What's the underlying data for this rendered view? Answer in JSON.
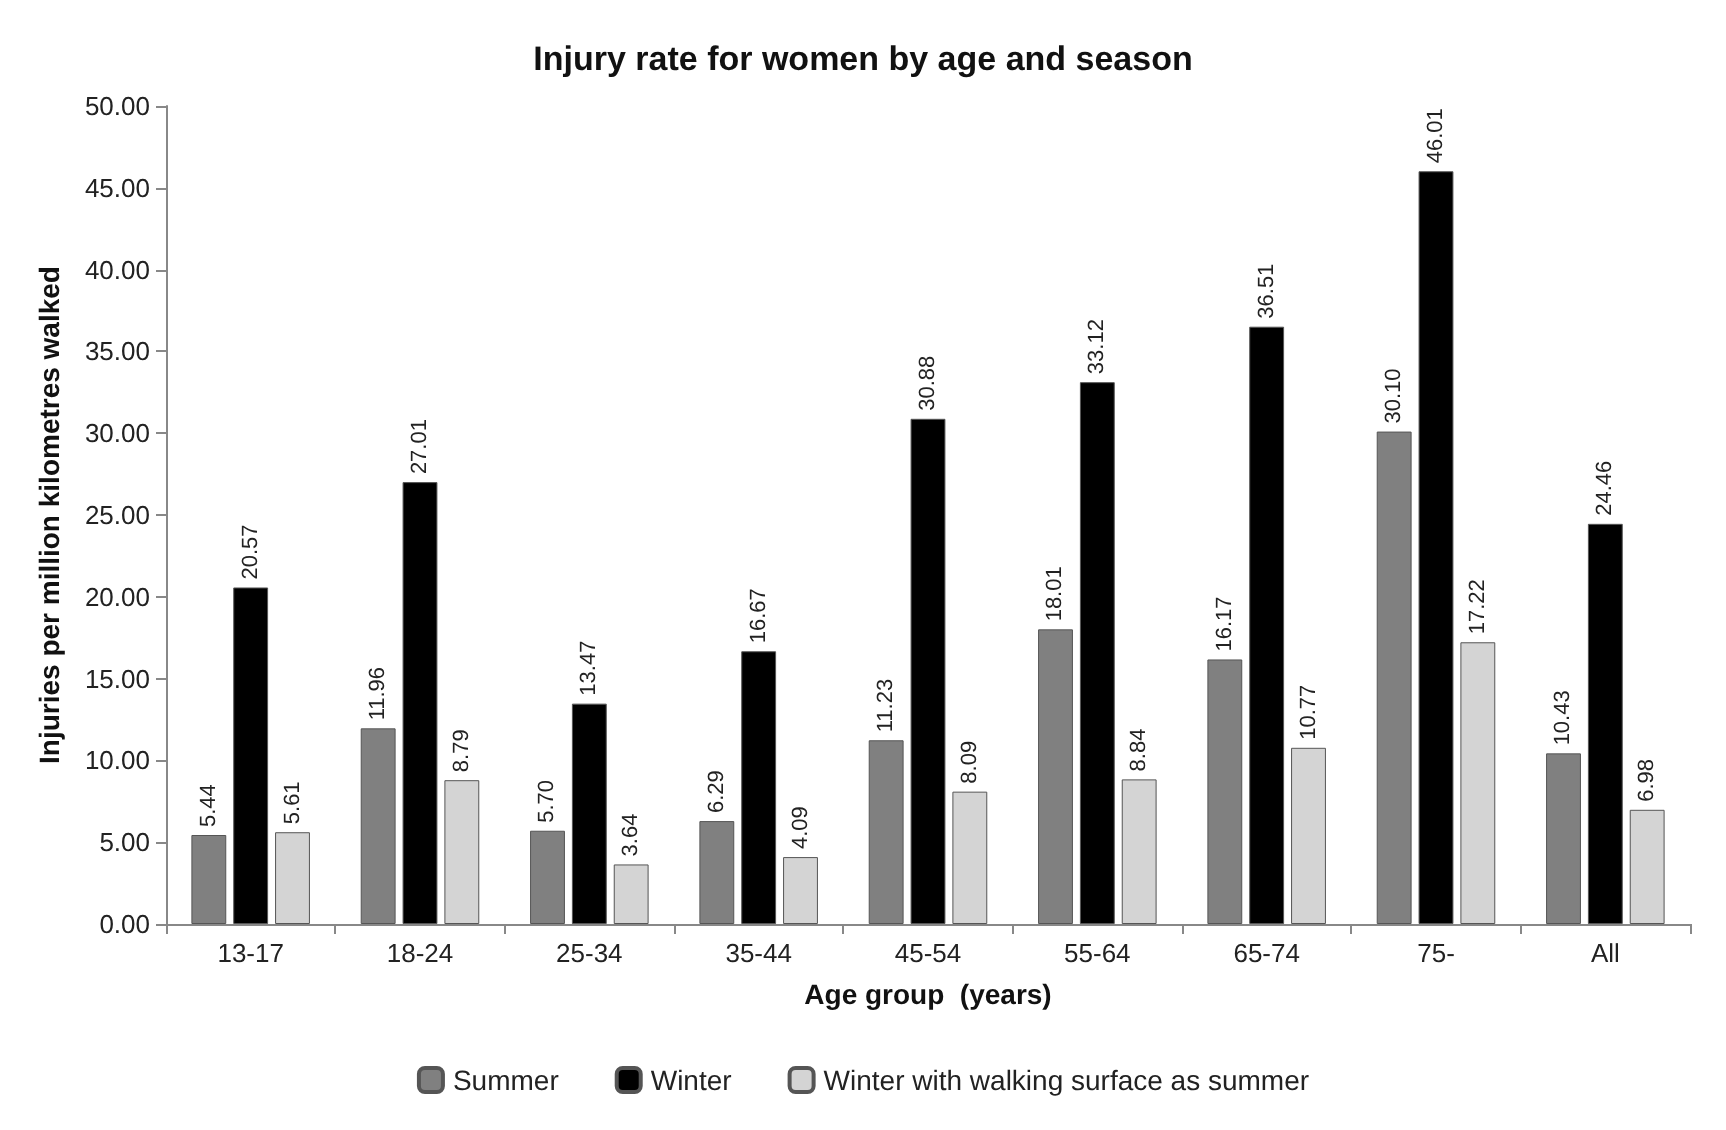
{
  "chart_data": {
    "type": "bar",
    "title": "Injury rate for women by age and season",
    "xlabel": "Age group  (years)",
    "ylabel": "Injuries per million kilometres walked",
    "categories": [
      "13-17",
      "18-24",
      "25-34",
      "35-44",
      "45-54",
      "55-64",
      "65-74",
      "75-",
      "All"
    ],
    "series": [
      {
        "name": "Summer",
        "color": "#808080",
        "values": [
          5.44,
          11.96,
          5.7,
          6.29,
          11.23,
          18.01,
          16.17,
          30.1,
          10.43
        ],
        "value_labels": [
          "5.44",
          "11.96",
          "5.70",
          "6.29",
          "11.23",
          "18.01",
          "16.17",
          "30.10",
          "10.43"
        ]
      },
      {
        "name": "Winter",
        "color": "#000000",
        "values": [
          20.57,
          27.01,
          13.47,
          16.67,
          30.88,
          33.12,
          36.51,
          46.01,
          24.46
        ],
        "value_labels": [
          "20.57",
          "27.01",
          "13.47",
          "16.67",
          "30.88",
          "33.12",
          "36.51",
          "46.01",
          "24.46"
        ]
      },
      {
        "name": "Winter with walking surface as summer",
        "color": "#d4d4d4",
        "values": [
          5.61,
          8.79,
          3.64,
          4.09,
          8.09,
          8.84,
          10.77,
          17.22,
          6.98
        ],
        "value_labels": [
          "5.61",
          "8.79",
          "3.64",
          "4.09",
          "8.09",
          "8.84",
          "10.77",
          "17.22",
          "6.98"
        ]
      }
    ],
    "ylim": [
      0,
      50
    ],
    "yticks": [
      {
        "value": 0,
        "label": "0.00"
      },
      {
        "value": 5,
        "label": "5.00"
      },
      {
        "value": 10,
        "label": "10.00"
      },
      {
        "value": 15,
        "label": "15.00"
      },
      {
        "value": 20,
        "label": "20.00"
      },
      {
        "value": 25,
        "label": "25.00"
      },
      {
        "value": 30,
        "label": "30.00"
      },
      {
        "value": 35,
        "label": "35.00"
      },
      {
        "value": 40,
        "label": "40.00"
      },
      {
        "value": 45,
        "label": "45.00"
      },
      {
        "value": 50,
        "label": "50.00"
      }
    ],
    "grid": false,
    "legend": "bottom"
  }
}
